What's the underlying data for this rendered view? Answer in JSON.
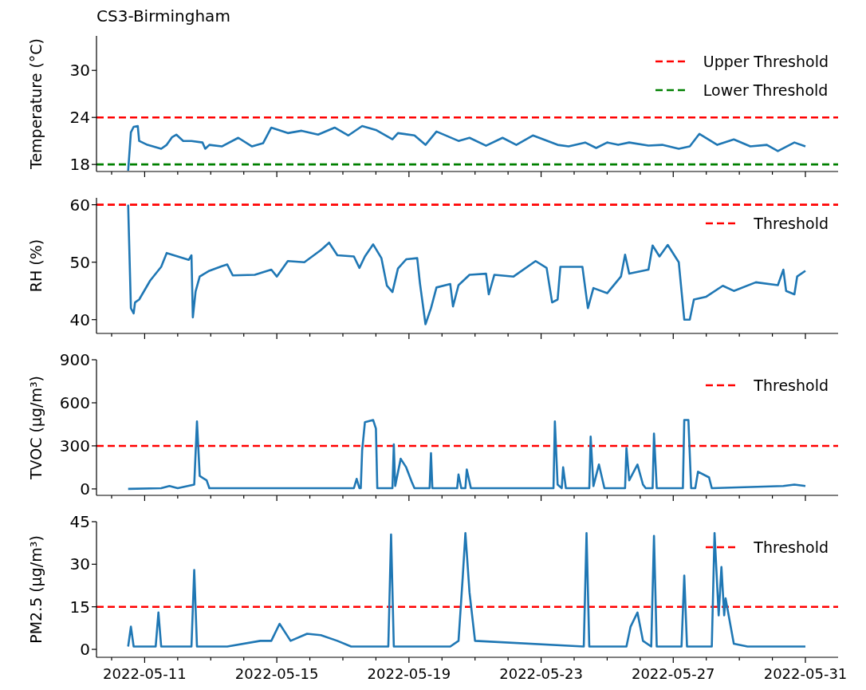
{
  "chart_data": [
    {
      "type": "line",
      "title": "CS3-Birmingham",
      "ylabel": "Temperature (°C)",
      "xlim": [
        "2022-05-09T13:00",
        "2022-05-31T23:45"
      ],
      "ylim": [
        17.1,
        34.4
      ],
      "yticks": [
        18,
        24,
        30
      ],
      "tick_labels": "y",
      "legend": "top right",
      "xticks": [
        {
          "value": "2022-05-10",
          "label": null
        },
        "2022-05-11",
        {
          "value": "2022-05-12",
          "label": null
        },
        {
          "value": "2022-05-13",
          "label": null
        },
        {
          "value": "2022-05-14",
          "label": null
        },
        "2022-05-15",
        {
          "value": "2022-05-16",
          "label": null
        },
        {
          "value": "2022-05-17",
          "label": null
        },
        {
          "value": "2022-05-18",
          "label": null
        },
        "2022-05-19",
        {
          "value": "2022-05-20",
          "label": null
        },
        {
          "value": "2022-05-21",
          "label": null
        },
        {
          "value": "2022-05-22",
          "label": null
        },
        "2022-05-23",
        {
          "value": "2022-05-24",
          "label": null
        },
        {
          "value": "2022-05-25",
          "label": null
        },
        {
          "value": "2022-05-26",
          "label": null
        },
        "2022-05-27",
        {
          "value": "2022-05-28",
          "label": null
        },
        {
          "value": "2022-05-29",
          "label": null
        },
        {
          "value": "2022-05-30",
          "label": null
        },
        "2022-05-31"
      ],
      "ref_lines": [
        {
          "axis": "y",
          "value": 24,
          "label": "Upper Threshold",
          "color": "#ff0000",
          "line_style": "dashed"
        },
        {
          "axis": "y",
          "value": 18,
          "label": "Lower Threshold",
          "color": "#008000",
          "line_style": "dashed"
        }
      ],
      "series": [
        {
          "color": "#1f77b4",
          "x": [
            "2022-05-10T12:00",
            "2022-05-10T14:00",
            "2022-05-10T16:00",
            "2022-05-10T19:00",
            "2022-05-10T20:00",
            "2022-05-11T02:00",
            "2022-05-11T12:00",
            "2022-05-11T16:00",
            "2022-05-11T20:00",
            "2022-05-11T23:00",
            "2022-05-12T04:00",
            "2022-05-12T10:00",
            "2022-05-12T18:00",
            "2022-05-12T20:00",
            "2022-05-12T23:00",
            "2022-05-13T08:00",
            "2022-05-13T20:00",
            "2022-05-14T06:00",
            "2022-05-14T14:00",
            "2022-05-14T20:00",
            "2022-05-15T08:00",
            "2022-05-15T18:00",
            "2022-05-16T06:00",
            "2022-05-16T18:00",
            "2022-05-17T04:00",
            "2022-05-17T14:00",
            "2022-05-18T00:00",
            "2022-05-18T12:00",
            "2022-05-18T16:00",
            "2022-05-19T04:00",
            "2022-05-19T12:00",
            "2022-05-19T20:00",
            "2022-05-20T12:00",
            "2022-05-20T20:00",
            "2022-05-21T08:00",
            "2022-05-21T20:00",
            "2022-05-22T06:00",
            "2022-05-22T18:00",
            "2022-05-23T12:00",
            "2022-05-23T20:00",
            "2022-05-24T08:00",
            "2022-05-24T16:00",
            "2022-05-25T00:00",
            "2022-05-25T08:00",
            "2022-05-25T16:00",
            "2022-05-26T06:00",
            "2022-05-26T16:00",
            "2022-05-27T04:00",
            "2022-05-27T12:00",
            "2022-05-27T19:00",
            "2022-05-28T08:00",
            "2022-05-28T20:00",
            "2022-05-29T08:00",
            "2022-05-29T20:00",
            "2022-05-30T04:00",
            "2022-05-30T16:00",
            "2022-05-31T00:00"
          ],
          "values": [
            17.2,
            22.1,
            22.8,
            22.9,
            21.0,
            20.5,
            20.0,
            20.5,
            21.5,
            21.8,
            21.0,
            21.0,
            20.8,
            20.0,
            20.5,
            20.3,
            21.4,
            20.3,
            20.7,
            22.7,
            22.0,
            22.3,
            21.8,
            22.7,
            21.7,
            22.9,
            22.4,
            21.2,
            22.0,
            21.7,
            20.5,
            22.2,
            21.0,
            21.4,
            20.4,
            21.4,
            20.5,
            21.7,
            20.5,
            20.3,
            20.8,
            20.1,
            20.8,
            20.5,
            20.8,
            20.4,
            20.5,
            20.0,
            20.3,
            21.9,
            20.5,
            21.2,
            20.3,
            20.5,
            19.7,
            20.8,
            20.3
          ]
        }
      ]
    },
    {
      "type": "line",
      "ylabel": "RH (%)",
      "xlim": [
        "2022-05-09T13:00",
        "2022-05-31T23:45"
      ],
      "ylim": [
        37.6,
        61.2
      ],
      "yticks": [
        40,
        50,
        60
      ],
      "tick_labels": "y",
      "legend": "top right",
      "xticks": [
        {
          "value": "2022-05-10",
          "label": null
        },
        "2022-05-11",
        {
          "value": "2022-05-12",
          "label": null
        },
        {
          "value": "2022-05-13",
          "label": null
        },
        {
          "value": "2022-05-14",
          "label": null
        },
        "2022-05-15",
        {
          "value": "2022-05-16",
          "label": null
        },
        {
          "value": "2022-05-17",
          "label": null
        },
        {
          "value": "2022-05-18",
          "label": null
        },
        "2022-05-19",
        {
          "value": "2022-05-20",
          "label": null
        },
        {
          "value": "2022-05-21",
          "label": null
        },
        {
          "value": "2022-05-22",
          "label": null
        },
        "2022-05-23",
        {
          "value": "2022-05-24",
          "label": null
        },
        {
          "value": "2022-05-25",
          "label": null
        },
        {
          "value": "2022-05-26",
          "label": null
        },
        "2022-05-27",
        {
          "value": "2022-05-28",
          "label": null
        },
        {
          "value": "2022-05-29",
          "label": null
        },
        {
          "value": "2022-05-30",
          "label": null
        },
        "2022-05-31"
      ],
      "ref_lines": [
        {
          "axis": "y",
          "value": 60,
          "label": "Threshold",
          "color": "#ff0000",
          "line_style": "dashed"
        }
      ],
      "series": [
        {
          "color": "#1f77b4",
          "x": [
            "2022-05-10T12:00",
            "2022-05-10T14:00",
            "2022-05-10T16:00",
            "2022-05-10T17:00",
            "2022-05-10T20:00",
            "2022-05-11T04:00",
            "2022-05-11T12:00",
            "2022-05-11T16:00",
            "2022-05-12T00:00",
            "2022-05-12T08:00",
            "2022-05-12T10:00",
            "2022-05-12T11:00",
            "2022-05-12T13:00",
            "2022-05-12T16:00",
            "2022-05-12T23:00",
            "2022-05-13T08:00",
            "2022-05-13T12:00",
            "2022-05-13T16:00",
            "2022-05-14T08:00",
            "2022-05-14T20:00",
            "2022-05-15T00:00",
            "2022-05-15T08:00",
            "2022-05-15T20:00",
            "2022-05-16T08:00",
            "2022-05-16T14:00",
            "2022-05-16T20:00",
            "2022-05-17T08:00",
            "2022-05-17T12:00",
            "2022-05-17T16:00",
            "2022-05-17T22:00",
            "2022-05-18T04:00",
            "2022-05-18T08:00",
            "2022-05-18T12:00",
            "2022-05-18T16:00",
            "2022-05-18T22:00",
            "2022-05-19T06:00",
            "2022-05-19T08:00",
            "2022-05-19T12:00",
            "2022-05-19T16:00",
            "2022-05-19T20:00",
            "2022-05-20T06:00",
            "2022-05-20T08:00",
            "2022-05-20T12:00",
            "2022-05-20T20:00",
            "2022-05-21T08:00",
            "2022-05-21T10:00",
            "2022-05-21T14:00",
            "2022-05-22T04:00",
            "2022-05-22T20:00",
            "2022-05-23T04:00",
            "2022-05-23T08:00",
            "2022-05-23T12:00",
            "2022-05-23T14:00",
            "2022-05-24T06:00",
            "2022-05-24T10:00",
            "2022-05-24T14:00",
            "2022-05-25T00:00",
            "2022-05-25T10:00",
            "2022-05-25T13:00",
            "2022-05-25T16:00",
            "2022-05-26T06:00",
            "2022-05-26T09:00",
            "2022-05-26T14:00",
            "2022-05-26T20:00",
            "2022-05-27T04:00",
            "2022-05-27T08:00",
            "2022-05-27T12:00",
            "2022-05-27T15:00",
            "2022-05-28T00:00",
            "2022-05-28T12:00",
            "2022-05-28T20:00",
            "2022-05-29T12:00",
            "2022-05-30T04:00",
            "2022-05-30T08:00",
            "2022-05-30T10:00",
            "2022-05-30T16:00",
            "2022-05-30T18:00",
            "2022-05-31T00:00"
          ],
          "values": [
            60.0,
            42.0,
            41.1,
            43.0,
            43.5,
            46.8,
            49.2,
            51.6,
            51.0,
            50.4,
            51.2,
            40.4,
            44.9,
            47.5,
            48.5,
            49.3,
            49.6,
            47.7,
            47.8,
            48.7,
            47.5,
            50.2,
            50.0,
            52.1,
            53.4,
            51.2,
            51.0,
            49.0,
            51.0,
            53.1,
            50.7,
            45.9,
            44.8,
            48.9,
            50.5,
            50.7,
            46.3,
            39.2,
            42.0,
            45.6,
            46.2,
            42.3,
            46.0,
            47.8,
            48.0,
            44.4,
            47.8,
            47.5,
            50.2,
            49.0,
            43.0,
            43.5,
            49.2,
            49.2,
            42.0,
            45.5,
            44.6,
            47.5,
            51.3,
            48.0,
            48.7,
            52.9,
            51.0,
            53.0,
            50.0,
            40.0,
            40.0,
            43.5,
            44.0,
            45.9,
            45.0,
            46.5,
            46.0,
            48.7,
            45.0,
            44.4,
            47.5,
            48.5
          ]
        }
      ]
    },
    {
      "type": "line",
      "ylabel": "TVOC (μg/m³)",
      "xlim": [
        "2022-05-09T13:00",
        "2022-05-31T23:45"
      ],
      "ylim": [
        -45,
        900
      ],
      "yticks": [
        0,
        300,
        600,
        900
      ],
      "tick_labels": "y",
      "legend": "top right",
      "xticks": [
        {
          "value": "2022-05-10",
          "label": null
        },
        "2022-05-11",
        {
          "value": "2022-05-12",
          "label": null
        },
        {
          "value": "2022-05-13",
          "label": null
        },
        {
          "value": "2022-05-14",
          "label": null
        },
        "2022-05-15",
        {
          "value": "2022-05-16",
          "label": null
        },
        {
          "value": "2022-05-17",
          "label": null
        },
        {
          "value": "2022-05-18",
          "label": null
        },
        "2022-05-19",
        {
          "value": "2022-05-20",
          "label": null
        },
        {
          "value": "2022-05-21",
          "label": null
        },
        {
          "value": "2022-05-22",
          "label": null
        },
        "2022-05-23",
        {
          "value": "2022-05-24",
          "label": null
        },
        {
          "value": "2022-05-25",
          "label": null
        },
        {
          "value": "2022-05-26",
          "label": null
        },
        "2022-05-27",
        {
          "value": "2022-05-28",
          "label": null
        },
        {
          "value": "2022-05-29",
          "label": null
        },
        {
          "value": "2022-05-30",
          "label": null
        },
        "2022-05-31"
      ],
      "ref_lines": [
        {
          "axis": "y",
          "value": 300,
          "label": "Threshold",
          "color": "#ff0000",
          "line_style": "dashed"
        }
      ],
      "series": [
        {
          "color": "#1f77b4",
          "x": [
            "2022-05-10T12:00",
            "2022-05-11T12:00",
            "2022-05-11T18:00",
            "2022-05-12T00:00",
            "2022-05-12T12:00",
            "2022-05-12T14:00",
            "2022-05-12T16:00",
            "2022-05-12T21:00",
            "2022-05-12T23:00",
            "2022-05-17T08:00",
            "2022-05-17T10:00",
            "2022-05-17T12:00",
            "2022-05-17T13:00",
            "2022-05-17T14:00",
            "2022-05-17T16:00",
            "2022-05-17T22:00",
            "2022-05-18T00:00",
            "2022-05-18T01:00",
            "2022-05-18T12:00",
            "2022-05-18T13:00",
            "2022-05-18T14:00",
            "2022-05-18T18:00",
            "2022-05-18T22:00",
            "2022-05-19T02:00",
            "2022-05-19T04:00",
            "2022-05-19T15:00",
            "2022-05-19T16:00",
            "2022-05-19T17:00",
            "2022-05-20T11:00",
            "2022-05-20T12:00",
            "2022-05-20T14:00",
            "2022-05-20T17:00",
            "2022-05-20T18:00",
            "2022-05-20T21:00",
            "2022-05-23T09:00",
            "2022-05-23T10:00",
            "2022-05-23T12:00",
            "2022-05-23T15:00",
            "2022-05-23T16:00",
            "2022-05-23T18:00",
            "2022-05-24T11:00",
            "2022-05-24T12:00",
            "2022-05-24T14:00",
            "2022-05-24T18:00",
            "2022-05-24T22:00",
            "2022-05-25T13:00",
            "2022-05-25T14:00",
            "2022-05-25T16:00",
            "2022-05-25T22:00",
            "2022-05-26T02:00",
            "2022-05-26T04:00",
            "2022-05-26T09:00",
            "2022-05-26T10:00",
            "2022-05-26T12:00",
            "2022-05-27T07:00",
            "2022-05-27T08:00",
            "2022-05-27T11:00",
            "2022-05-27T13:00",
            "2022-05-27T16:00",
            "2022-05-27T18:00",
            "2022-05-28T02:00",
            "2022-05-28T04:00",
            "2022-05-30T08:00",
            "2022-05-30T16:00",
            "2022-05-31T00:00"
          ],
          "values": [
            0,
            5,
            20,
            5,
            30,
            470,
            90,
            60,
            5,
            5,
            70,
            5,
            5,
            270,
            465,
            480,
            420,
            5,
            5,
            310,
            20,
            210,
            150,
            50,
            5,
            5,
            250,
            5,
            5,
            100,
            5,
            5,
            135,
            5,
            5,
            470,
            30,
            5,
            150,
            5,
            5,
            365,
            20,
            170,
            5,
            5,
            285,
            60,
            170,
            30,
            5,
            5,
            385,
            5,
            5,
            480,
            480,
            5,
            5,
            120,
            80,
            5,
            20,
            30,
            20
          ]
        }
      ]
    },
    {
      "type": "line",
      "ylabel": "PM2.5 (μg/m³)",
      "xlim": [
        "2022-05-09T13:00",
        "2022-05-31T23:45"
      ],
      "ylim": [
        -2.8,
        45
      ],
      "yticks": [
        0,
        15,
        30,
        45
      ],
      "legend": "top right",
      "xticks": [
        {
          "value": "2022-05-10",
          "label": null
        },
        "2022-05-11",
        {
          "value": "2022-05-12",
          "label": null
        },
        {
          "value": "2022-05-13",
          "label": null
        },
        {
          "value": "2022-05-14",
          "label": null
        },
        "2022-05-15",
        {
          "value": "2022-05-16",
          "label": null
        },
        {
          "value": "2022-05-17",
          "label": null
        },
        {
          "value": "2022-05-18",
          "label": null
        },
        "2022-05-19",
        {
          "value": "2022-05-20",
          "label": null
        },
        {
          "value": "2022-05-21",
          "label": null
        },
        {
          "value": "2022-05-22",
          "label": null
        },
        "2022-05-23",
        {
          "value": "2022-05-24",
          "label": null
        },
        {
          "value": "2022-05-25",
          "label": null
        },
        {
          "value": "2022-05-26",
          "label": null
        },
        "2022-05-27",
        {
          "value": "2022-05-28",
          "label": null
        },
        {
          "value": "2022-05-29",
          "label": null
        },
        {
          "value": "2022-05-30",
          "label": null
        },
        "2022-05-31"
      ],
      "ref_lines": [
        {
          "axis": "y",
          "value": 15,
          "label": "Threshold",
          "color": "#ff0000",
          "line_style": "dashed"
        }
      ],
      "series": [
        {
          "color": "#1f77b4",
          "x": [
            "2022-05-10T12:00",
            "2022-05-10T14:00",
            "2022-05-10T16:00",
            "2022-05-11T08:00",
            "2022-05-11T10:00",
            "2022-05-11T12:00",
            "2022-05-12T10:00",
            "2022-05-12T12:00",
            "2022-05-12T14:00",
            "2022-05-13T12:00",
            "2022-05-14T12:00",
            "2022-05-14T20:00",
            "2022-05-15T02:00",
            "2022-05-15T10:00",
            "2022-05-15T22:00",
            "2022-05-16T08:00",
            "2022-05-16T20:00",
            "2022-05-17T06:00",
            "2022-05-18T09:00",
            "2022-05-18T11:00",
            "2022-05-18T13:00",
            "2022-05-19T08:00",
            "2022-05-20T06:00",
            "2022-05-20T12:00",
            "2022-05-20T15:00",
            "2022-05-20T17:00",
            "2022-05-20T20:00",
            "2022-05-21T00:00",
            "2022-05-24T07:00",
            "2022-05-24T09:00",
            "2022-05-24T11:00",
            "2022-05-25T14:00",
            "2022-05-25T17:00",
            "2022-05-25T22:00",
            "2022-05-26T02:00",
            "2022-05-26T08:00",
            "2022-05-26T10:00",
            "2022-05-26T12:00",
            "2022-05-27T06:00",
            "2022-05-27T08:00",
            "2022-05-27T10:00",
            "2022-05-28T04:00",
            "2022-05-28T06:00",
            "2022-05-28T09:00",
            "2022-05-28T11:00",
            "2022-05-28T13:00",
            "2022-05-28T14:00",
            "2022-05-28T20:00",
            "2022-05-29T06:00",
            "2022-05-30T12:00",
            "2022-05-31T00:00"
          ],
          "values": [
            1,
            8,
            1,
            1,
            13,
            1,
            1,
            28,
            1,
            1,
            3,
            3,
            9,
            3,
            5.5,
            5,
            3,
            1,
            1,
            40.5,
            1,
            1,
            1,
            3,
            25,
            41,
            20,
            3,
            1,
            41,
            1,
            1,
            8,
            13,
            3,
            1,
            40,
            1,
            1,
            26,
            1,
            1,
            41,
            12,
            29,
            12,
            18,
            2,
            1,
            1,
            1
          ]
        }
      ]
    }
  ]
}
